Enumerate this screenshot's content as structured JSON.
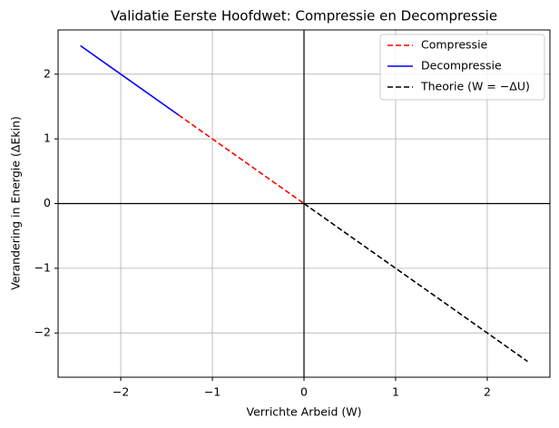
{
  "chart_data": {
    "type": "line",
    "title": "Validatie Eerste Hoofdwet: Compressie en Decompressie",
    "xlabel": "Verrichte Arbeid (W)",
    "ylabel": "Verandering in Energie (ΔEkin)",
    "series": [
      {
        "name": "Compressie",
        "color": "#ff0000",
        "dashed": true,
        "x": [
          -1.37,
          0
        ],
        "values": [
          1.37,
          0
        ]
      },
      {
        "name": "Decompressie",
        "color": "#0000ff",
        "dashed": false,
        "x": [
          -2.44,
          -1.37
        ],
        "values": [
          2.44,
          1.37
        ]
      },
      {
        "name": "Theorie (W = −ΔU)",
        "color": "#000000",
        "dashed": true,
        "x": [
          0,
          2.44
        ],
        "values": [
          0,
          -2.44
        ]
      }
    ],
    "hlines": [
      0
    ],
    "vlines": [
      0
    ],
    "xlim": [
      -2.684,
      2.684
    ],
    "ylim": [
      -2.684,
      2.684
    ],
    "xticks": [
      {
        "value": -2,
        "label": "−2"
      },
      {
        "value": -1,
        "label": "−1"
      },
      0,
      1,
      2
    ],
    "yticks": [
      {
        "value": -2,
        "label": "−2"
      },
      {
        "value": -1,
        "label": "−1"
      },
      0,
      1,
      2
    ],
    "grid": true,
    "legend": "upper right"
  }
}
